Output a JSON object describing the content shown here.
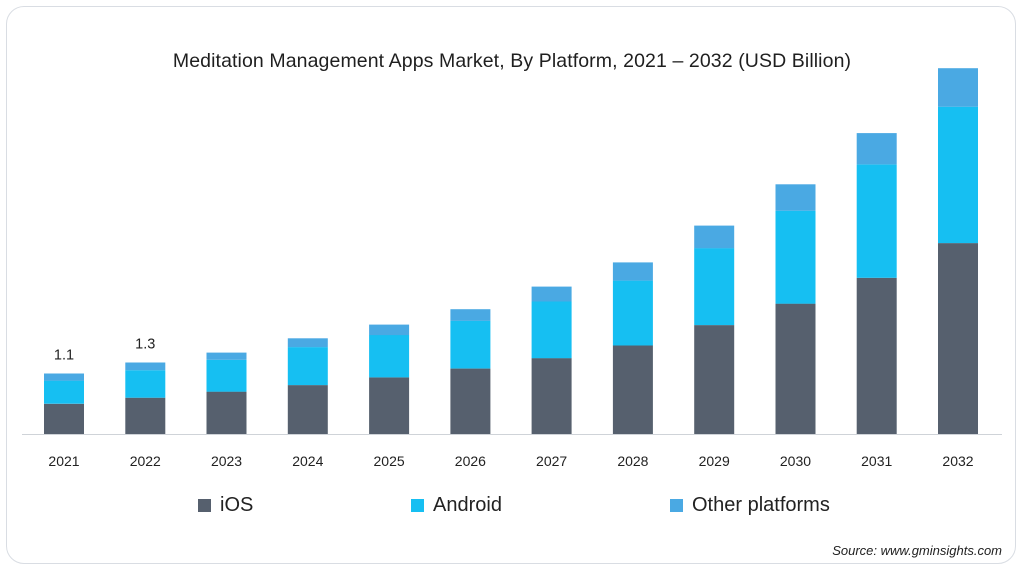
{
  "chart_data": {
    "type": "bar",
    "stacked": true,
    "title": "Meditation Management Apps Market, By Platform, 2021 – 2032 (USD Billion)",
    "categories": [
      "2021",
      "2022",
      "2023",
      "2024",
      "2025",
      "2026",
      "2027",
      "2028",
      "2029",
      "2030",
      "2031",
      "2032"
    ],
    "series": [
      {
        "name": "iOS",
        "color": "#56606e",
        "values": [
          0.55,
          0.66,
          0.77,
          0.89,
          1.03,
          1.19,
          1.38,
          1.61,
          1.98,
          2.37,
          2.84,
          3.47
        ]
      },
      {
        "name": "Android",
        "color": "#16bff2",
        "values": [
          0.42,
          0.5,
          0.58,
          0.69,
          0.77,
          0.87,
          1.03,
          1.18,
          1.4,
          1.69,
          2.06,
          2.48
        ]
      },
      {
        "name": "Other platforms",
        "color": "#4aa9e3",
        "values": [
          0.13,
          0.14,
          0.13,
          0.16,
          0.19,
          0.21,
          0.27,
          0.33,
          0.41,
          0.48,
          0.57,
          0.7
        ]
      }
    ],
    "data_labels": [
      {
        "category": "2021",
        "text": "1.1"
      },
      {
        "category": "2022",
        "text": "1.3"
      }
    ],
    "ylim": [
      0,
      6.8
    ],
    "xlabel": "",
    "ylabel": "",
    "grid": false,
    "legend_position": "bottom"
  },
  "source": "Source: www.gminsights.com"
}
